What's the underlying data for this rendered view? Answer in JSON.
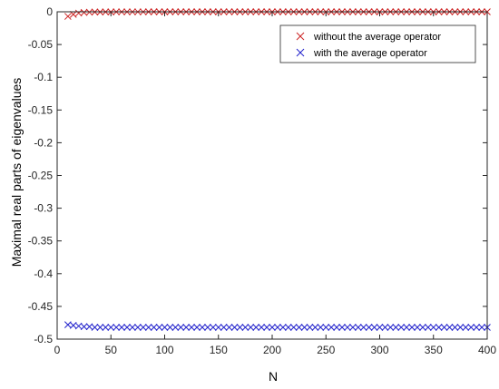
{
  "chart_data": {
    "type": "scatter",
    "title": "",
    "xlabel": "N",
    "ylabel": "Maximal real parts of eigenvalues",
    "xlim": [
      0,
      400
    ],
    "ylim": [
      -0.5,
      0
    ],
    "xticks": [
      0,
      50,
      100,
      150,
      200,
      250,
      300,
      350,
      400
    ],
    "yticks": [
      0,
      -0.05,
      -0.1,
      -0.15,
      -0.2,
      -0.25,
      -0.3,
      -0.35,
      -0.4,
      -0.45,
      -0.5
    ],
    "xtick_labels": [
      "0",
      "50",
      "100",
      "150",
      "200",
      "250",
      "300",
      "350",
      "400"
    ],
    "ytick_labels": [
      "0",
      "-0.05",
      "-0.1",
      "-0.15",
      "-0.2",
      "-0.25",
      "-0.3",
      "-0.35",
      "-0.4",
      "-0.45",
      "-0.5"
    ],
    "grid": false,
    "legend_position": "top-right",
    "marker": "x",
    "series": [
      {
        "name": "without the average operator",
        "color": "#cc2222",
        "x": [
          10,
          15,
          20,
          25,
          30,
          35,
          40,
          45,
          50,
          55,
          60,
          65,
          70,
          75,
          80,
          85,
          90,
          95,
          100,
          105,
          110,
          115,
          120,
          125,
          130,
          135,
          140,
          145,
          150,
          155,
          160,
          165,
          170,
          175,
          180,
          185,
          190,
          195,
          200,
          205,
          210,
          215,
          220,
          225,
          230,
          235,
          240,
          245,
          250,
          255,
          260,
          265,
          270,
          275,
          280,
          285,
          290,
          295,
          300,
          305,
          310,
          315,
          320,
          325,
          330,
          335,
          340,
          345,
          350,
          355,
          360,
          365,
          370,
          375,
          380,
          385,
          390,
          395,
          400
        ],
        "y": [
          -0.007,
          -0.004,
          -0.002,
          -0.001,
          -0.0006,
          -0.0004,
          -0.0003,
          -0.0002,
          -0.0002,
          -0.0001,
          -0.0001,
          -0.0001,
          -0.0001,
          -0.0001,
          -0.0001,
          0,
          0,
          0,
          0,
          0,
          0,
          0,
          0,
          0,
          0,
          0,
          0,
          0,
          0,
          0,
          0,
          0,
          0,
          0,
          0,
          0,
          0,
          0,
          0,
          0,
          0,
          0,
          0,
          0,
          0,
          0,
          0,
          0,
          0,
          0,
          0,
          0,
          0,
          0,
          0,
          0,
          0,
          0,
          0,
          0,
          0,
          0,
          0,
          0,
          0,
          0,
          0,
          0,
          0,
          0,
          0,
          0,
          0,
          0,
          0,
          0,
          0,
          0,
          0
        ]
      },
      {
        "name": "with the average operator",
        "color": "#2222cc",
        "x": [
          10,
          15,
          20,
          25,
          30,
          35,
          40,
          45,
          50,
          55,
          60,
          65,
          70,
          75,
          80,
          85,
          90,
          95,
          100,
          105,
          110,
          115,
          120,
          125,
          130,
          135,
          140,
          145,
          150,
          155,
          160,
          165,
          170,
          175,
          180,
          185,
          190,
          195,
          200,
          205,
          210,
          215,
          220,
          225,
          230,
          235,
          240,
          245,
          250,
          255,
          260,
          265,
          270,
          275,
          280,
          285,
          290,
          295,
          300,
          305,
          310,
          315,
          320,
          325,
          330,
          335,
          340,
          345,
          350,
          355,
          360,
          365,
          370,
          375,
          380,
          385,
          390,
          395,
          400
        ],
        "y": [
          -0.478,
          -0.479,
          -0.48,
          -0.481,
          -0.481,
          -0.482,
          -0.482,
          -0.482,
          -0.482,
          -0.482,
          -0.482,
          -0.482,
          -0.482,
          -0.482,
          -0.482,
          -0.482,
          -0.482,
          -0.482,
          -0.482,
          -0.482,
          -0.482,
          -0.482,
          -0.482,
          -0.482,
          -0.482,
          -0.482,
          -0.482,
          -0.482,
          -0.482,
          -0.482,
          -0.482,
          -0.482,
          -0.482,
          -0.482,
          -0.482,
          -0.482,
          -0.482,
          -0.482,
          -0.482,
          -0.482,
          -0.482,
          -0.482,
          -0.482,
          -0.482,
          -0.482,
          -0.482,
          -0.482,
          -0.482,
          -0.482,
          -0.482,
          -0.482,
          -0.482,
          -0.482,
          -0.482,
          -0.482,
          -0.482,
          -0.482,
          -0.482,
          -0.482,
          -0.482,
          -0.482,
          -0.482,
          -0.482,
          -0.482,
          -0.482,
          -0.482,
          -0.482,
          -0.482,
          -0.482,
          -0.482,
          -0.482,
          -0.482,
          -0.482,
          -0.482,
          -0.482,
          -0.482,
          -0.482,
          -0.482,
          -0.482
        ]
      }
    ]
  }
}
